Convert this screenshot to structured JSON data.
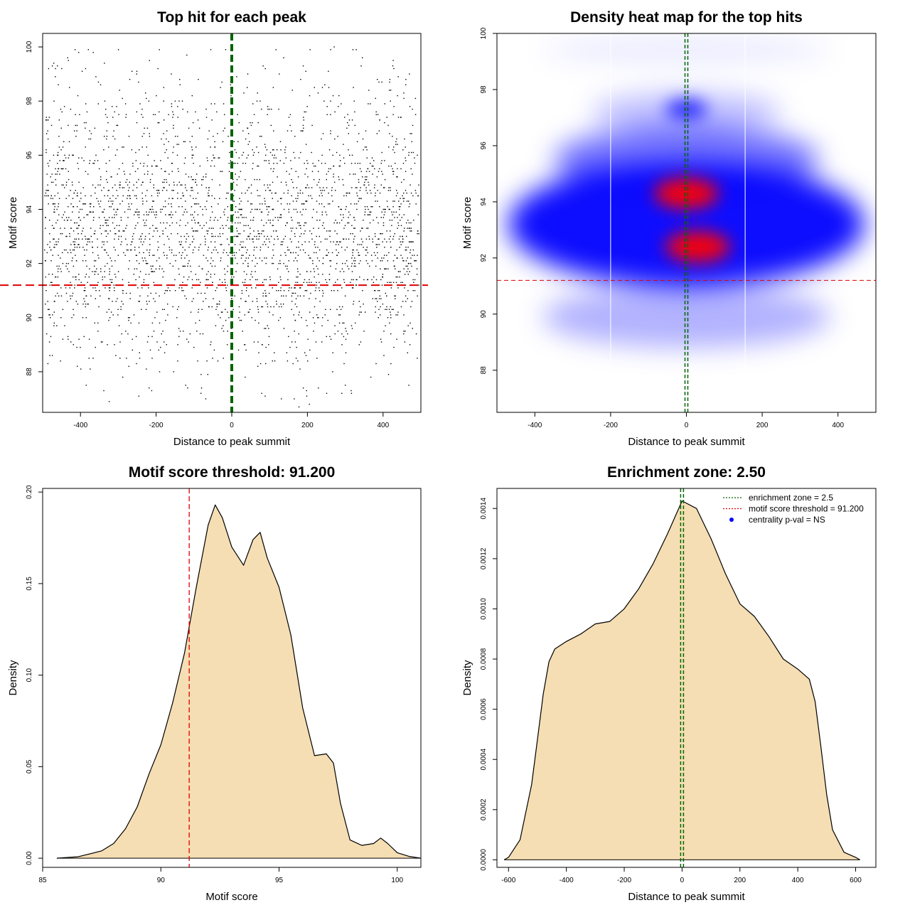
{
  "chart_data": [
    {
      "id": "scatter",
      "type": "scatter",
      "title": "Top hit for each peak",
      "xlabel": "Distance to peak summit",
      "ylabel": "Motif score",
      "xlim": [
        -500,
        500
      ],
      "ylim": [
        86.5,
        100.5
      ],
      "xticks": [
        -400,
        -200,
        0,
        200,
        400
      ],
      "yticks": [
        88,
        90,
        92,
        94,
        96,
        98,
        100
      ],
      "n_points_approx": 3000,
      "y_density_levels": [
        [
          86.5,
          0.002
        ],
        [
          87.5,
          0.01
        ],
        [
          88.5,
          0.025
        ],
        [
          89.5,
          0.05
        ],
        [
          90.5,
          0.09
        ],
        [
          91.5,
          0.13
        ],
        [
          92.5,
          0.17
        ],
        [
          93.5,
          0.16
        ],
        [
          94.5,
          0.15
        ],
        [
          95.5,
          0.1
        ],
        [
          96.5,
          0.06
        ],
        [
          97.5,
          0.05
        ],
        [
          98.5,
          0.02
        ],
        [
          99.5,
          0.015
        ]
      ],
      "reference_lines": {
        "vertical_x": 0,
        "vertical_color": "#006400",
        "horizontal_y": 91.2,
        "horizontal_color": "#e00000"
      },
      "grid": false
    },
    {
      "id": "heatmap",
      "type": "heatmap",
      "title": "Density heat map for the top hits",
      "xlabel": "Distance to peak summit",
      "ylabel": "Motif score",
      "xlim": [
        -500,
        500
      ],
      "ylim": [
        86.5,
        100
      ],
      "xticks": [
        -400,
        -200,
        0,
        200,
        400
      ],
      "yticks": [
        88,
        90,
        92,
        94,
        96,
        98,
        100
      ],
      "density_peaks": [
        {
          "x": 0,
          "y": 94.3,
          "intensity": "high"
        },
        {
          "x": 30,
          "y": 92.4,
          "intensity": "high"
        },
        {
          "x": 0,
          "y": 97.3,
          "intensity": "medium"
        }
      ],
      "colors": {
        "low": "#ffffff",
        "mid": "#0000ff",
        "high": "#ff0000"
      },
      "reference_lines": {
        "vertical_x": 0,
        "vertical_color": "#006400",
        "horizontal_y": 91.2,
        "horizontal_color": "#e00000",
        "white_lines_x": [
          -200,
          155
        ]
      },
      "grid": false
    },
    {
      "id": "score_density",
      "type": "area",
      "title": "Motif score threshold: 91.200",
      "xlabel": "Motif score",
      "ylabel": "Density",
      "xlim": [
        85,
        101
      ],
      "ylim": [
        -0.005,
        0.202
      ],
      "xticks": [
        85,
        90,
        95,
        100
      ],
      "yticks": [
        0.0,
        0.05,
        0.1,
        0.15,
        0.2
      ],
      "ytick_labels": [
        "0.00",
        "0.05",
        "0.10",
        "0.15",
        "0.20"
      ],
      "x": [
        85.6,
        86.5,
        87.5,
        88.0,
        88.5,
        89.0,
        89.5,
        90.0,
        90.5,
        91.0,
        91.5,
        92.0,
        92.3,
        92.6,
        93.0,
        93.5,
        93.9,
        94.2,
        94.5,
        95.0,
        95.5,
        96.0,
        96.5,
        97.0,
        97.3,
        97.6,
        98.0,
        98.5,
        99.0,
        99.3,
        99.6,
        100.0,
        100.5,
        101.0
      ],
      "y": [
        0.0,
        0.0008,
        0.004,
        0.008,
        0.016,
        0.028,
        0.046,
        0.062,
        0.085,
        0.112,
        0.148,
        0.182,
        0.193,
        0.186,
        0.17,
        0.16,
        0.174,
        0.178,
        0.164,
        0.148,
        0.122,
        0.082,
        0.056,
        0.057,
        0.052,
        0.03,
        0.01,
        0.007,
        0.008,
        0.011,
        0.008,
        0.003,
        0.001,
        0.0
      ],
      "threshold_x": 91.2,
      "fill": "#f5deb3",
      "grid": false
    },
    {
      "id": "distance_density",
      "type": "area",
      "title": "Enrichment zone: 2.50",
      "xlabel": "Distance to peak summit",
      "ylabel": "Density",
      "xlim": [
        -640,
        670
      ],
      "ylim": [
        -3e-05,
        0.00148
      ],
      "xticks": [
        -600,
        -400,
        -200,
        0,
        200,
        400,
        600
      ],
      "yticks": [
        0,
        0.0002,
        0.0004,
        0.0006,
        0.0008,
        0.001,
        0.0012,
        0.0014
      ],
      "ytick_labels": [
        "0.0000",
        "0.0002",
        "0.0004",
        "0.0006",
        "0.0008",
        "0.0010",
        "0.0012",
        "0.0014"
      ],
      "x": [
        -615,
        -600,
        -560,
        -520,
        -500,
        -480,
        -460,
        -440,
        -400,
        -350,
        -300,
        -250,
        -200,
        -150,
        -100,
        -50,
        0,
        50,
        100,
        150,
        200,
        250,
        300,
        350,
        400,
        440,
        460,
        480,
        500,
        520,
        560,
        600,
        615
      ],
      "y": [
        0,
        1e-05,
        8e-05,
        0.0003,
        0.00048,
        0.00066,
        0.00079,
        0.00084,
        0.00087,
        0.0009,
        0.00094,
        0.00095,
        0.001,
        0.00108,
        0.00118,
        0.0013,
        0.00143,
        0.0014,
        0.00128,
        0.00114,
        0.00102,
        0.00097,
        0.00089,
        0.0008,
        0.00076,
        0.00072,
        0.00063,
        0.00045,
        0.00026,
        0.00012,
        3e-05,
        1e-05,
        0
      ],
      "enrichment_zone_x": 0,
      "fill": "#f5deb3",
      "legend": {
        "position": "top-right",
        "entries": [
          {
            "label": "enrichment zone = 2.5",
            "color": "#006400",
            "style": "dotted-line"
          },
          {
            "label": "motif score threshold = 91.200",
            "color": "#e00000",
            "style": "dotted-line"
          },
          {
            "label": "centrality p-val = NS",
            "color": "#0000ff",
            "style": "point"
          }
        ]
      },
      "grid": false
    }
  ]
}
